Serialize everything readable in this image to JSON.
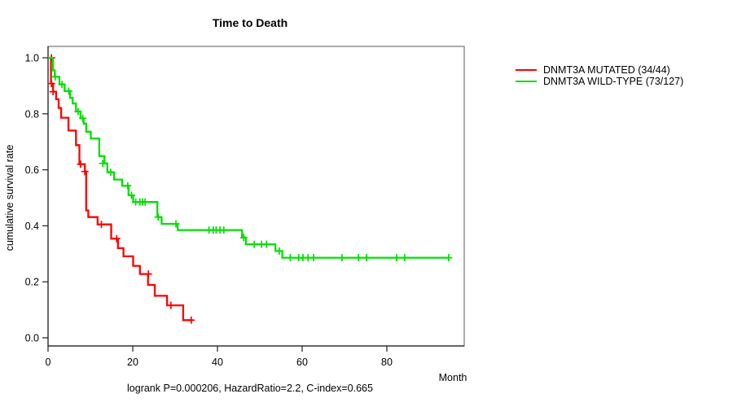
{
  "title": "Time to Death",
  "caption": "logrank P=0.000206, HazardRatio=2.2, C-index=0.665",
  "axes": {
    "x_label": "Month",
    "y_label": "cumulative survival rate",
    "x_ticks": [
      "0",
      "20",
      "40",
      "60",
      "80"
    ],
    "y_ticks": [
      "0.0",
      "0.2",
      "0.4",
      "0.6",
      "0.8",
      "1.0"
    ]
  },
  "legend": [
    {
      "label": "DNMT3A MUTATED (34/44)",
      "color": "#ff0000"
    },
    {
      "label": "DNMT3A WILD-TYPE (73/127)",
      "color": "#00e000"
    }
  ],
  "chart_data": {
    "type": "line",
    "subtype": "kaplan-meier-step",
    "title": "Time to Death",
    "xlabel": "Month",
    "ylabel": "cumulative survival rate",
    "xlim": [
      0,
      98
    ],
    "ylim": [
      0.0,
      1.0
    ],
    "grid": false,
    "legend_position": "right-outside",
    "series": [
      {
        "name": "DNMT3A MUTATED (34/44)",
        "color": "#ff0000",
        "end": 34.2,
        "steps": [
          [
            0,
            1.0
          ],
          [
            0.7,
            0.908
          ],
          [
            1.2,
            0.879
          ],
          [
            1.9,
            0.852
          ],
          [
            2.5,
            0.821
          ],
          [
            3.1,
            0.786
          ],
          [
            4.8,
            0.74
          ],
          [
            6.6,
            0.688
          ],
          [
            7.4,
            0.62
          ],
          [
            8.7,
            0.594
          ],
          [
            9.0,
            0.455
          ],
          [
            9.5,
            0.431
          ],
          [
            11.7,
            0.405
          ],
          [
            14.9,
            0.354
          ],
          [
            16.5,
            0.32
          ],
          [
            17.8,
            0.291
          ],
          [
            20.1,
            0.257
          ],
          [
            21.7,
            0.228
          ],
          [
            23.6,
            0.189
          ],
          [
            25.2,
            0.15
          ],
          [
            28.1,
            0.116
          ],
          [
            31.9,
            0.063
          ]
        ],
        "censors": [
          [
            0.8,
            1.0
          ],
          [
            0.8,
            0.908
          ],
          [
            1.2,
            0.879
          ],
          [
            7.7,
            0.62
          ],
          [
            8.7,
            0.594
          ],
          [
            12.6,
            0.405
          ],
          [
            16.2,
            0.354
          ],
          [
            23.7,
            0.228
          ],
          [
            29.0,
            0.116
          ],
          [
            33.8,
            0.063
          ]
        ]
      },
      {
        "name": "DNMT3A WILD-TYPE (73/127)",
        "color": "#00e000",
        "end": 94.6,
        "steps": [
          [
            0,
            1.0
          ],
          [
            1.2,
            0.955
          ],
          [
            1.6,
            0.932
          ],
          [
            2.7,
            0.905
          ],
          [
            3.9,
            0.881
          ],
          [
            5.2,
            0.857
          ],
          [
            5.8,
            0.837
          ],
          [
            6.6,
            0.808
          ],
          [
            7.7,
            0.784
          ],
          [
            8.4,
            0.765
          ],
          [
            9.0,
            0.736
          ],
          [
            10.1,
            0.712
          ],
          [
            12.1,
            0.649
          ],
          [
            13.3,
            0.623
          ],
          [
            14.0,
            0.591
          ],
          [
            15.6,
            0.565
          ],
          [
            17.5,
            0.543
          ],
          [
            19.0,
            0.509
          ],
          [
            20.1,
            0.485
          ],
          [
            25.8,
            0.431
          ],
          [
            26.8,
            0.407
          ],
          [
            30.6,
            0.385
          ],
          [
            45.8,
            0.358
          ],
          [
            46.7,
            0.334
          ],
          [
            53.7,
            0.31
          ],
          [
            55.3,
            0.286
          ]
        ],
        "censors": [
          [
            1.7,
            0.932
          ],
          [
            3.3,
            0.905
          ],
          [
            4.9,
            0.881
          ],
          [
            7.1,
            0.808
          ],
          [
            8.2,
            0.784
          ],
          [
            12.9,
            0.623
          ],
          [
            14.8,
            0.591
          ],
          [
            18.8,
            0.543
          ],
          [
            19.7,
            0.509
          ],
          [
            20.7,
            0.485
          ],
          [
            21.7,
            0.485
          ],
          [
            22.3,
            0.485
          ],
          [
            22.9,
            0.485
          ],
          [
            26.0,
            0.431
          ],
          [
            30.2,
            0.407
          ],
          [
            38.0,
            0.385
          ],
          [
            39.0,
            0.385
          ],
          [
            39.7,
            0.385
          ],
          [
            40.6,
            0.385
          ],
          [
            41.5,
            0.385
          ],
          [
            46.2,
            0.358
          ],
          [
            48.7,
            0.334
          ],
          [
            50.4,
            0.334
          ],
          [
            51.6,
            0.334
          ],
          [
            54.6,
            0.31
          ],
          [
            57.2,
            0.286
          ],
          [
            59.2,
            0.286
          ],
          [
            60.2,
            0.286
          ],
          [
            61.4,
            0.286
          ],
          [
            62.7,
            0.286
          ],
          [
            69.4,
            0.286
          ],
          [
            73.3,
            0.286
          ],
          [
            75.2,
            0.286
          ],
          [
            82.3,
            0.286
          ],
          [
            84.2,
            0.286
          ],
          [
            94.6,
            0.286
          ]
        ]
      }
    ]
  }
}
